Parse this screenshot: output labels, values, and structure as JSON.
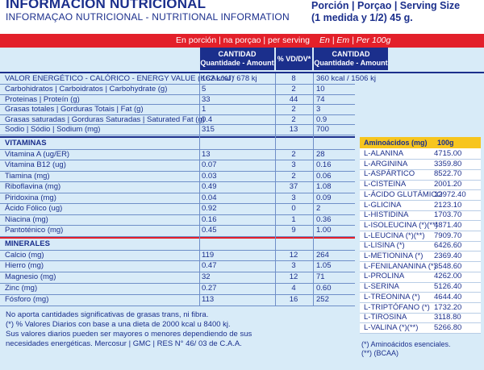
{
  "header": {
    "title": "INFORMACIÓN NUTRICIONAL",
    "subtitle": "INFORMAÇAO NUTRICIONAL - NUTRITIONAL INFORMATION",
    "serving_line1": "Porción | Porçao | Serving Size",
    "serving_line2": "(1 medida y 1/2) 45 g."
  },
  "banner": {
    "left": "En porción | na porçao | per serving",
    "right": "En | Em | Per 100g"
  },
  "columns": {
    "amount_l1": "CANTIDAD",
    "amount_l2": "Quantidade - Amount",
    "dv": "% VD/DV*",
    "amount100_l1": "CANTIDAD",
    "amount100_l2": "Quantidade - Amount"
  },
  "energy": {
    "label": "VALOR ENERGÉTICO - CALÓRICO - ENERGY VALUE (KCAL/KJ)",
    "serving": "162 kcal / 678 kj",
    "dv": "8",
    "per100": "360 kcal / 1506 kj"
  },
  "macros": [
    {
      "label": "Carbohidratos | Carboidratos | Carbohydrate (g)",
      "serving": "5",
      "dv": "2",
      "per100": "10"
    },
    {
      "label": "Proteinas | Proteín (g)",
      "serving": "33",
      "dv": "44",
      "per100": "74"
    },
    {
      "label": "Grasas totales | Gorduras Totais | Fat (g)",
      "serving": "1",
      "dv": "2",
      "per100": "3"
    },
    {
      "label": "Grasas saturadas | Gorduras Saturadas | Saturated Fat (g)",
      "serving": "0.4",
      "dv": "2",
      "per100": "0.9"
    },
    {
      "label": "Sodio | Sódio | Sodium (mg)",
      "serving": "315",
      "dv": "13",
      "per100": "700"
    }
  ],
  "vitamins_title": "VITAMINAS",
  "vitamins": [
    {
      "label": "Vitamina A (ug/ER)",
      "serving": "13",
      "dv": "2",
      "per100": "28"
    },
    {
      "label": "Vitamina B12 (ug)",
      "serving": "0.07",
      "dv": "3",
      "per100": "0.16"
    },
    {
      "label": "Tiamina (mg)",
      "serving": "0.03",
      "dv": "2",
      "per100": "0.06"
    },
    {
      "label": "Riboflavina (mg)",
      "serving": "0.49",
      "dv": "37",
      "per100": "1.08"
    },
    {
      "label": "Piridoxina (mg)",
      "serving": "0.04",
      "dv": "3",
      "per100": "0.09"
    },
    {
      "label": "Ácido Fólico (ug)",
      "serving": "0.92",
      "dv": "0",
      "per100": "2"
    },
    {
      "label": "Niacina (mg)",
      "serving": "0.16",
      "dv": "1",
      "per100": "0.36"
    },
    {
      "label": "Pantoténico (mg)",
      "serving": "0.45",
      "dv": "9",
      "per100": "1.00"
    }
  ],
  "minerals_title": "MINERALES",
  "minerals": [
    {
      "label": "Calcio (mg)",
      "serving": "119",
      "dv": "12",
      "per100": "264"
    },
    {
      "label": "Hierro (mg)",
      "serving": "0.47",
      "dv": "3",
      "per100": "1.05"
    },
    {
      "label": "Magnesio (mg)",
      "serving": "32",
      "dv": "12",
      "per100": "71"
    },
    {
      "label": "Zinc (mg)",
      "serving": "0.27",
      "dv": "4",
      "per100": "0.60"
    },
    {
      "label": "Fósforo (mg)",
      "serving": "113",
      "dv": "16",
      "per100": "252"
    }
  ],
  "aminoacids": {
    "header_label": "Aminoácidos (mg)",
    "header_value": "100g",
    "items": [
      {
        "name": "L-ALANINA",
        "value": "4715.00"
      },
      {
        "name": "L-ARGININA",
        "value": "3359.80"
      },
      {
        "name": "L-ASPÁRTICO",
        "value": "8522.70"
      },
      {
        "name": "L-CISTEINA",
        "value": "2001.20"
      },
      {
        "name": "L-ÁCIDO GLUTÁMICO",
        "value": "12972.40"
      },
      {
        "name": "L-GLICINA",
        "value": "2123.10"
      },
      {
        "name": "L-HISTIDINA",
        "value": "1703.70"
      },
      {
        "name": "L-ISOLEUCINA (*)(**)",
        "value": "4871.40"
      },
      {
        "name": "L-LEUCINA (*)(**)",
        "value": "7909.70"
      },
      {
        "name": "L-LISINA (*)",
        "value": "6426.60"
      },
      {
        "name": "L-METIONINA (*)",
        "value": "2369.40"
      },
      {
        "name": "L-FENILANANINA (*)",
        "value": "3548.60"
      },
      {
        "name": "L-PROLINA",
        "value": "4262.00"
      },
      {
        "name": "L-SERINA",
        "value": "5126.40"
      },
      {
        "name": "L-TREONINA (*)",
        "value": "4644.40"
      },
      {
        "name": "L-TRIPTÓFANO (*)",
        "value": "1732.20"
      },
      {
        "name": "L-TIROSINA",
        "value": "3118.80"
      },
      {
        "name": "L-VALINA (*)(**)",
        "value": "5266.80"
      }
    ],
    "note1": "(*) Aminoácidos esenciales.",
    "note2": "(**) (BCAA)"
  },
  "footnotes": {
    "line1": "No aporta cantidades significativas de grasas trans, ni fibra.",
    "line2": "(*) % Valores Diarios con base a una dieta de 2000 kcal u 8400 kj.",
    "line3": "Sus valores diarios pueden ser mayores o menores dependiendo de sus",
    "line4": "necesidades energéticas. Mercosur | GMC | RES N° 46/ 03 de C.A.A."
  }
}
